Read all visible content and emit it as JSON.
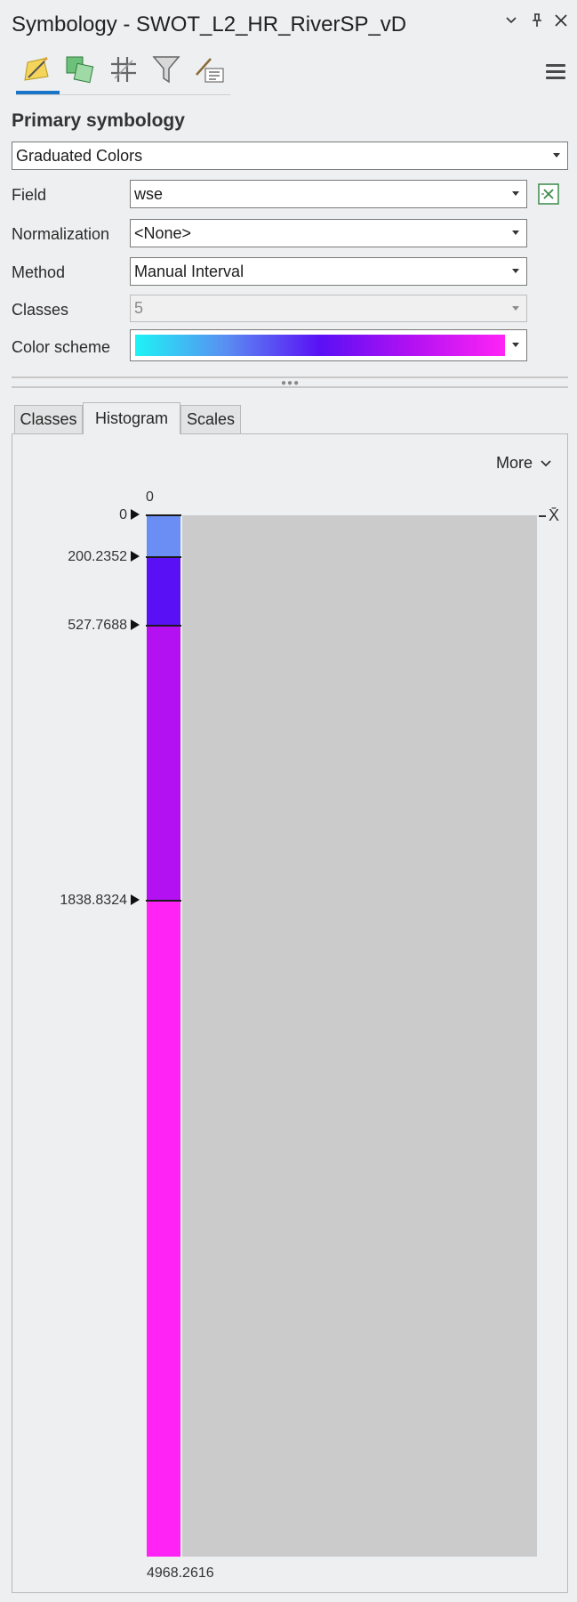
{
  "window": {
    "title": "Symbology - SWOT_L2_HR_RiverSP_vD",
    "controls": [
      "chevron-down-icon",
      "pin-icon",
      "close-icon"
    ]
  },
  "toolbar": {
    "icons": [
      "primary-symbology-icon",
      "secondary-symbology-icon",
      "vary-symbology-icon",
      "filter-icon",
      "label-classes-icon"
    ],
    "active_index": 0,
    "menu_icon": "hamburger-menu-icon"
  },
  "primary_symbology": {
    "heading": "Primary symbology",
    "renderer": "Graduated Colors",
    "field_label": "Field",
    "field_value": "wse",
    "normalization_label": "Normalization",
    "normalization_value": "<None>",
    "method_label": "Method",
    "method_value": "Manual Interval",
    "classes_label": "Classes",
    "classes_value": "5",
    "color_scheme_label": "Color scheme",
    "color_scheme_colors": [
      "#1ef3f5",
      "#5a8cf2",
      "#5a10f5",
      "#b311f3",
      "#ff24f5"
    ]
  },
  "tabs": [
    {
      "label": "Classes",
      "active": false
    },
    {
      "label": "Histogram",
      "active": true
    },
    {
      "label": "Scales",
      "active": false
    }
  ],
  "histogram": {
    "more_label": "More",
    "top_count_label": "0",
    "mean_marker": "X̄",
    "min_value": 0,
    "max_value": 4968.2616,
    "max_label": "4968.2616",
    "breaks": [
      {
        "value": 0,
        "label": "0"
      },
      {
        "value": 200.2352,
        "label": "200.2352"
      },
      {
        "value": 527.7688,
        "label": "527.7688"
      },
      {
        "value": 1838.8324,
        "label": "1838.8324"
      }
    ],
    "class_colors": [
      "#6a8ef4",
      "#5a10f5",
      "#b411f3",
      "#ff24f5"
    ]
  }
}
